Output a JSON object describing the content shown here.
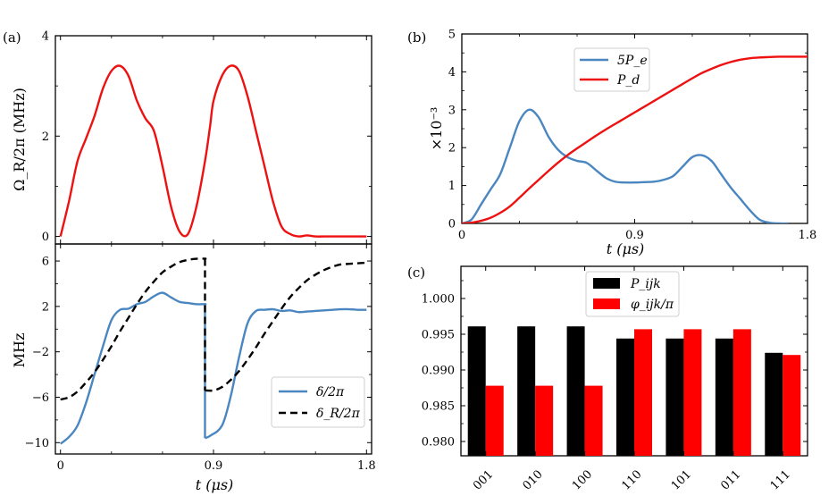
{
  "chart_data": [
    {
      "panel_label": "(a)",
      "type": "line",
      "ylabel": "Ω_R/2π (MHz)",
      "xlim": [
        -0.03,
        1.83
      ],
      "ylim": [
        -0.15,
        4.0
      ],
      "yticks": [
        "0",
        "2",
        "4"
      ],
      "grid": false,
      "series": [
        {
          "color": "#ee1111",
          "style": "solid",
          "x": [
            0.0,
            0.05,
            0.1,
            0.15,
            0.2,
            0.25,
            0.3,
            0.35,
            0.4,
            0.45,
            0.5,
            0.55,
            0.6,
            0.65,
            0.7,
            0.75,
            0.8,
            0.85,
            0.88,
            0.9,
            0.95,
            1.0,
            1.05,
            1.1,
            1.15,
            1.2,
            1.25,
            1.3,
            1.35,
            1.4,
            1.45,
            1.5,
            1.55,
            1.6,
            1.65,
            1.7,
            1.75,
            1.8
          ],
          "y": [
            0.0,
            0.7,
            1.5,
            1.95,
            2.4,
            2.95,
            3.3,
            3.4,
            3.2,
            2.7,
            2.35,
            2.1,
            1.4,
            0.6,
            0.1,
            0.05,
            0.6,
            1.5,
            2.2,
            2.7,
            3.2,
            3.4,
            3.3,
            2.8,
            2.1,
            1.4,
            0.7,
            0.2,
            0.05,
            0.0,
            0.02,
            0.0,
            0.0,
            0.0,
            0.0,
            0.0,
            0.0,
            0.0
          ]
        }
      ]
    },
    {
      "panel_label": "",
      "type": "line",
      "xlabel": "t (μs)",
      "ylabel": "MHz",
      "xlim": [
        -0.03,
        1.83
      ],
      "ylim": [
        -11.0,
        7.5
      ],
      "xticks": [
        "0",
        "0.9",
        "1.8"
      ],
      "yticks": [
        "6",
        "2",
        "−2",
        "−6",
        "−10"
      ],
      "grid": false,
      "legend_position": "lower-right",
      "series": [
        {
          "name": "δ/2π",
          "color": "#4a86c0",
          "style": "solid",
          "x": [
            0.0,
            0.05,
            0.1,
            0.15,
            0.2,
            0.25,
            0.3,
            0.35,
            0.4,
            0.45,
            0.5,
            0.55,
            0.6,
            0.65,
            0.7,
            0.75,
            0.8,
            0.85,
            0.85,
            0.88,
            0.95,
            1.0,
            1.05,
            1.1,
            1.15,
            1.2,
            1.25,
            1.3,
            1.35,
            1.4,
            1.45,
            1.5,
            1.55,
            1.6,
            1.65,
            1.7,
            1.75,
            1.8
          ],
          "y": [
            -10.1,
            -9.5,
            -8.5,
            -6.5,
            -4.0,
            -1.5,
            0.8,
            1.7,
            1.8,
            2.2,
            2.4,
            2.9,
            3.2,
            2.8,
            2.4,
            2.3,
            2.2,
            2.2,
            -9.6,
            -9.4,
            -8.5,
            -6.0,
            -2.5,
            0.5,
            1.6,
            1.7,
            1.75,
            1.6,
            1.65,
            1.5,
            1.55,
            1.6,
            1.65,
            1.7,
            1.75,
            1.75,
            1.7,
            1.7
          ]
        },
        {
          "name": "δ_R/2π",
          "color": "#000000",
          "style": "dashed",
          "x": [
            0.0,
            0.05,
            0.1,
            0.15,
            0.2,
            0.25,
            0.3,
            0.35,
            0.4,
            0.45,
            0.5,
            0.55,
            0.6,
            0.65,
            0.7,
            0.75,
            0.8,
            0.85,
            0.85,
            0.9,
            0.95,
            1.0,
            1.05,
            1.1,
            1.15,
            1.2,
            1.25,
            1.3,
            1.35,
            1.4,
            1.45,
            1.5,
            1.55,
            1.6,
            1.65,
            1.7,
            1.75,
            1.8
          ],
          "y": [
            -6.2,
            -6.0,
            -5.5,
            -4.7,
            -3.8,
            -2.7,
            -1.5,
            -0.2,
            1.0,
            2.2,
            3.3,
            4.2,
            5.0,
            5.5,
            5.9,
            6.1,
            6.2,
            6.2,
            -5.4,
            -5.4,
            -5.1,
            -4.5,
            -3.7,
            -2.7,
            -1.6,
            -0.4,
            0.7,
            1.8,
            2.8,
            3.6,
            4.3,
            4.8,
            5.2,
            5.5,
            5.7,
            5.75,
            5.8,
            5.85
          ]
        }
      ]
    },
    {
      "panel_label": "(b)",
      "type": "line",
      "xlabel": "t (μs)",
      "ylabel": "×10⁻³",
      "xlim": [
        0.0,
        1.8
      ],
      "ylim": [
        0.0,
        5.0
      ],
      "xticks": [
        "0",
        "0.9",
        "1.8"
      ],
      "yticks": [
        "0",
        "1",
        "2",
        "3",
        "4",
        "5"
      ],
      "grid": false,
      "legend_position": "upper-center",
      "series": [
        {
          "name": "5P_e",
          "color": "#4a86c0",
          "style": "solid",
          "x": [
            0.0,
            0.05,
            0.1,
            0.15,
            0.2,
            0.25,
            0.3,
            0.35,
            0.4,
            0.45,
            0.5,
            0.55,
            0.6,
            0.65,
            0.7,
            0.75,
            0.8,
            0.85,
            0.9,
            0.95,
            1.0,
            1.05,
            1.1,
            1.15,
            1.2,
            1.25,
            1.3,
            1.35,
            1.4,
            1.45,
            1.5,
            1.55,
            1.6,
            1.65,
            1.7
          ],
          "y": [
            0.0,
            0.1,
            0.5,
            0.9,
            1.3,
            2.0,
            2.7,
            3.0,
            2.8,
            2.3,
            1.95,
            1.75,
            1.65,
            1.6,
            1.4,
            1.2,
            1.1,
            1.08,
            1.08,
            1.09,
            1.1,
            1.15,
            1.25,
            1.5,
            1.75,
            1.8,
            1.65,
            1.3,
            0.95,
            0.65,
            0.35,
            0.1,
            0.02,
            0.0,
            0.0
          ]
        },
        {
          "name": "P_d",
          "color": "#ee1111",
          "style": "solid",
          "x": [
            0.0,
            0.05,
            0.1,
            0.15,
            0.2,
            0.25,
            0.3,
            0.35,
            0.4,
            0.45,
            0.5,
            0.55,
            0.6,
            0.65,
            0.7,
            0.75,
            0.8,
            0.85,
            0.9,
            0.95,
            1.0,
            1.05,
            1.1,
            1.15,
            1.2,
            1.25,
            1.3,
            1.35,
            1.4,
            1.45,
            1.5,
            1.55,
            1.6,
            1.65,
            1.7,
            1.75,
            1.8
          ],
          "y": [
            0.0,
            0.02,
            0.07,
            0.15,
            0.28,
            0.45,
            0.68,
            0.92,
            1.15,
            1.38,
            1.6,
            1.8,
            1.98,
            2.15,
            2.32,
            2.48,
            2.63,
            2.78,
            2.93,
            3.08,
            3.23,
            3.38,
            3.53,
            3.68,
            3.83,
            3.97,
            4.08,
            4.18,
            4.26,
            4.32,
            4.36,
            4.38,
            4.39,
            4.4,
            4.4,
            4.4,
            4.4
          ]
        }
      ]
    },
    {
      "panel_label": "(c)",
      "type": "bar",
      "categories": [
        "001",
        "010",
        "100",
        "110",
        "101",
        "011",
        "111"
      ],
      "ylim": [
        0.978,
        1.0045
      ],
      "yticks": [
        "0.980",
        "0.985",
        "0.990",
        "0.995",
        "1.000"
      ],
      "grid": false,
      "legend_position": "upper-center",
      "series": [
        {
          "name": "P_ijk",
          "color": "#000000",
          "values": [
            0.9961,
            0.9961,
            0.9961,
            0.9944,
            0.9944,
            0.9944,
            0.9924
          ]
        },
        {
          "name": "φ_ijk/π",
          "color": "#ff0000",
          "values": [
            0.9878,
            0.9878,
            0.9878,
            0.9957,
            0.9957,
            0.9957,
            0.9921
          ]
        }
      ]
    }
  ]
}
